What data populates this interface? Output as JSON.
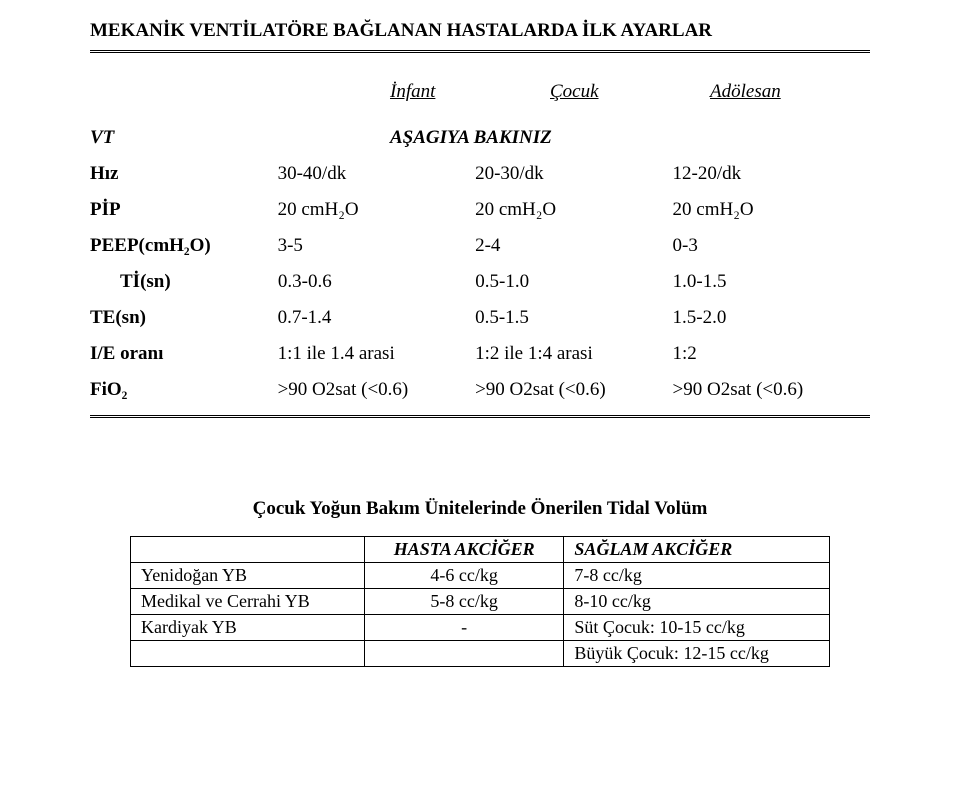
{
  "title": "MEKANİK VENTİLATÖRE BAĞLANAN HASTALARDA İLK AYARLAR",
  "cols": {
    "c1": "İnfant",
    "c2": "Çocuk",
    "c3": "Adölesan"
  },
  "vt": {
    "label": "VT",
    "value": "AŞAGIYA BAKINIZ"
  },
  "rows": [
    {
      "label": "Hız",
      "c1": "30-40/dk",
      "c2": "20-30/dk",
      "c3": "12-20/dk",
      "indent": false
    },
    {
      "label": "PİP",
      "c1": "20 cmH₂O",
      "c2": "20 cmH₂O",
      "c3": "20 cmH₂O",
      "indent": false
    },
    {
      "label": "PEEP(cmH₂O)",
      "c1": "3-5",
      "c2": "2-4",
      "c3": "0-3",
      "indent": false
    },
    {
      "label": "Tİ(sn)",
      "c1": "0.3-0.6",
      "c2": "0.5-1.0",
      "c3": "1.0-1.5",
      "indent": true
    },
    {
      "label": "TE(sn)",
      "c1": "0.7-1.4",
      "c2": "0.5-1.5",
      "c3": "1.5-2.0",
      "indent": false
    },
    {
      "label": "I/E oranı",
      "c1": "1:1 ile 1.4 arasi",
      "c2": "1:2 ile 1:4 arasi",
      "c3": "1:2",
      "indent": false
    },
    {
      "label": "FiO₂",
      "c1": ">90 O2sat (<0.6)",
      "c2": ">90 O2sat (<0.6)",
      "c3": ">90 O2sat (<0.6)",
      "indent": false
    }
  ],
  "section2": {
    "heading": "Çocuk Yoğun Bakım Ünitelerinde Önerilen Tidal Volüm",
    "headers": {
      "h1": "",
      "h2": "HASTA AKCİĞER",
      "h3": "SAĞLAM AKCİĞER"
    },
    "rows": [
      {
        "r1": "Yenidoğan YB",
        "r2": "4-6 cc/kg",
        "r3": "7-8 cc/kg"
      },
      {
        "r1": "Medikal ve Cerrahi YB",
        "r2": "5-8 cc/kg",
        "r3": "8-10 cc/kg"
      },
      {
        "r1": "Kardiyak YB",
        "r2": "-",
        "r3": "Süt Çocuk: 10-15 cc/kg"
      }
    ],
    "extra_row": {
      "r3": "Büyük Çocuk: 12-15 cc/kg"
    }
  },
  "colors": {
    "text": "#000000",
    "background": "#ffffff",
    "rule": "#000000"
  },
  "fonts": {
    "family": "Times New Roman",
    "title_size_pt": 14,
    "body_size_pt": 14
  }
}
